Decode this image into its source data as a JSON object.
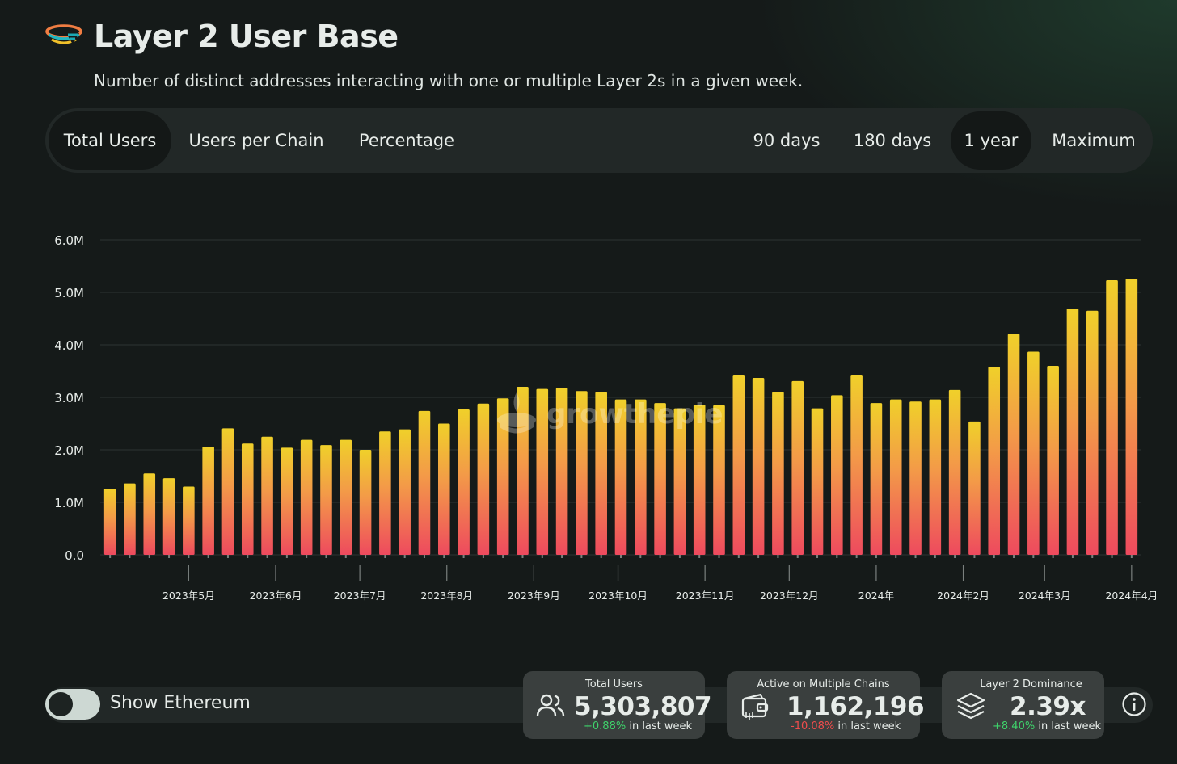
{
  "header": {
    "title": "Layer 2 User Base",
    "subtitle": "Number of distinct addresses interacting with one or multiple Layer 2s in a given week.",
    "logo_icon": "growthepie-logo-icon"
  },
  "tabs": {
    "metric": [
      {
        "label": "Total Users",
        "active": true
      },
      {
        "label": "Users per Chain",
        "active": false
      },
      {
        "label": "Percentage",
        "active": false
      }
    ],
    "range": [
      {
        "label": "90 days",
        "active": false
      },
      {
        "label": "180 days",
        "active": false
      },
      {
        "label": "1 year",
        "active": true
      },
      {
        "label": "Maximum",
        "active": false
      }
    ]
  },
  "chart_data": {
    "type": "bar",
    "title": "",
    "xlabel": "",
    "ylabel": "",
    "ylim": [
      0,
      6000000
    ],
    "y_ticks": [
      {
        "value": 0,
        "label": "0.0"
      },
      {
        "value": 1000000,
        "label": "1.0M"
      },
      {
        "value": 2000000,
        "label": "2.0M"
      },
      {
        "value": 3000000,
        "label": "3.0M"
      },
      {
        "value": 4000000,
        "label": "4.0M"
      },
      {
        "value": 5000000,
        "label": "5.0M"
      },
      {
        "value": 6000000,
        "label": "6.0M"
      }
    ],
    "x_ticks": [
      {
        "date": "2023-05-01",
        "label": "2023年5月"
      },
      {
        "date": "2023-06-01",
        "label": "2023年6月"
      },
      {
        "date": "2023-07-01",
        "label": "2023年7月"
      },
      {
        "date": "2023-08-01",
        "label": "2023年8月"
      },
      {
        "date": "2023-09-01",
        "label": "2023年9月"
      },
      {
        "date": "2023-10-01",
        "label": "2023年10月"
      },
      {
        "date": "2023-11-01",
        "label": "2023年11月"
      },
      {
        "date": "2023-12-01",
        "label": "2023年12月"
      },
      {
        "date": "2024-01-01",
        "label": "2024年"
      },
      {
        "date": "2024-02-01",
        "label": "2024年2月"
      },
      {
        "date": "2024-03-01",
        "label": "2024年3月"
      },
      {
        "date": "2024-04-01",
        "label": "2024年4月"
      }
    ],
    "grid": true,
    "watermark": "growthepie",
    "colors": {
      "bar_top": "#f0d02a",
      "bar_mid": "#f39a48",
      "bar_bottom": "#ee4a5e",
      "grid": "#2d3433"
    },
    "x": [
      "2023-04-03",
      "2023-04-10",
      "2023-04-17",
      "2023-04-24",
      "2023-05-01",
      "2023-05-08",
      "2023-05-15",
      "2023-05-22",
      "2023-05-29",
      "2023-06-05",
      "2023-06-12",
      "2023-06-19",
      "2023-06-26",
      "2023-07-03",
      "2023-07-10",
      "2023-07-17",
      "2023-07-24",
      "2023-07-31",
      "2023-08-07",
      "2023-08-14",
      "2023-08-21",
      "2023-08-28",
      "2023-09-04",
      "2023-09-11",
      "2023-09-18",
      "2023-09-25",
      "2023-10-02",
      "2023-10-09",
      "2023-10-16",
      "2023-10-23",
      "2023-10-30",
      "2023-11-06",
      "2023-11-13",
      "2023-11-20",
      "2023-11-27",
      "2023-12-04",
      "2023-12-11",
      "2023-12-18",
      "2023-12-25",
      "2024-01-01",
      "2024-01-08",
      "2024-01-15",
      "2024-01-22",
      "2024-01-29",
      "2024-02-05",
      "2024-02-12",
      "2024-02-19",
      "2024-02-26",
      "2024-03-04",
      "2024-03-11",
      "2024-03-18",
      "2024-03-25",
      "2024-04-01"
    ],
    "values": [
      1260000,
      1360000,
      1550000,
      1460000,
      1300000,
      2060000,
      2410000,
      2120000,
      2250000,
      2040000,
      2190000,
      2090000,
      2190000,
      2000000,
      2350000,
      2390000,
      2740000,
      2500000,
      2770000,
      2880000,
      2980000,
      3200000,
      3160000,
      3180000,
      3120000,
      3100000,
      2960000,
      2960000,
      2890000,
      2790000,
      2860000,
      2850000,
      3430000,
      3370000,
      3100000,
      3310000,
      2790000,
      3040000,
      3430000,
      2890000,
      2960000,
      2920000,
      2960000,
      3140000,
      2540000,
      3580000,
      4210000,
      3870000,
      3600000,
      4690000,
      4650000,
      5230000,
      5260000
    ]
  },
  "toggle": {
    "label": "Show Ethereum",
    "on": false
  },
  "cards": [
    {
      "label": "Total Users",
      "value": "5,303,807",
      "change": "+0.88%",
      "change_suffix": " in last week",
      "icon": "users-icon"
    },
    {
      "label": "Active on Multiple Chains",
      "value": "1,162,196",
      "change": "-10.08%",
      "change_suffix": " in last week",
      "icon": "wallet-icon"
    },
    {
      "label": "Layer 2 Dominance",
      "value": "2.39x",
      "change": "+8.40%",
      "change_suffix": " in last week",
      "icon": "layers-icon"
    }
  ],
  "info_icon": "info-icon"
}
